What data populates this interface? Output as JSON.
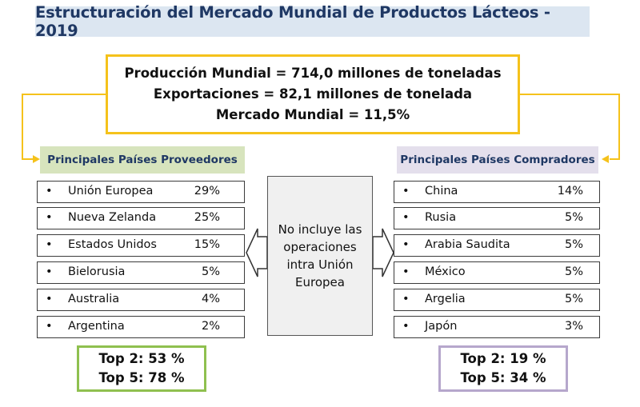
{
  "title": "Estructuración del Mercado Mundial de Productos Lácteos - 2019",
  "summary": {
    "line1": "Producción Mundial = 714,0 millones de toneladas",
    "line2": "Exportaciones = 82,1 millones de tonelada",
    "line3": "Mercado Mundial = 11,5%"
  },
  "suppliers": {
    "header": "Principales Países Proveedores",
    "items": [
      {
        "country": "Unión Europea",
        "share": "29%"
      },
      {
        "country": "Nueva Zelanda",
        "share": "25%"
      },
      {
        "country": "Estados Unidos",
        "share": "15%"
      },
      {
        "country": "Bielorusia",
        "share": "5%"
      },
      {
        "country": "Australia",
        "share": "4%"
      },
      {
        "country": "Argentina",
        "share": "2%"
      }
    ],
    "top2": "Top 2: 53 %",
    "top5": "Top 5: 78 %"
  },
  "buyers": {
    "header": "Principales Países Compradores",
    "items": [
      {
        "country": "China",
        "share": "14%"
      },
      {
        "country": "Rusia",
        "share": "5%"
      },
      {
        "country": "Arabia Saudita",
        "share": "5%"
      },
      {
        "country": "México",
        "share": "5%"
      },
      {
        "country": "Argelia",
        "share": "5%"
      },
      {
        "country": "Japón",
        "share": "3%"
      }
    ],
    "top2": "Top 2: 19 %",
    "top5": "Top 5: 34 %"
  },
  "note": "No incluye las operaciones intra Unión Europea",
  "bullet": "•",
  "colors": {
    "title_bg": "#dce6f1",
    "title_text": "#1f3864",
    "summary_border": "#f5c21b",
    "suppliers_header_bg": "#d7e4bd",
    "buyers_header_bg": "#e4dfec",
    "suppliers_top_border": "#8fc04f",
    "buyers_top_border": "#b6a7cc",
    "note_bg": "#f0f0f0"
  }
}
